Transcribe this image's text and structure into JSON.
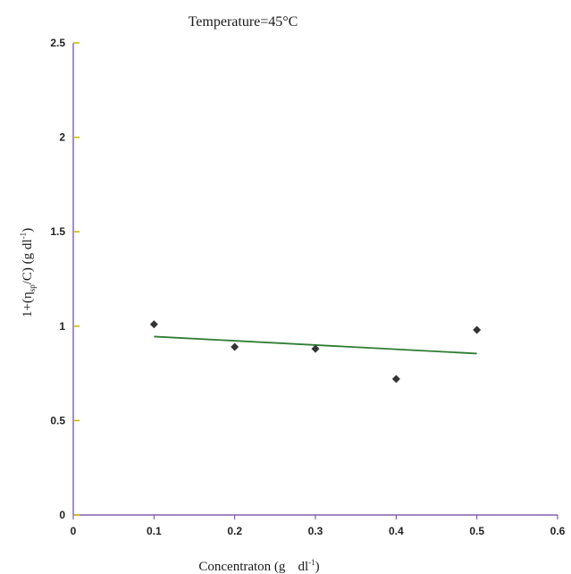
{
  "chart_data": {
    "type": "scatter",
    "title": "Temperature=45°C",
    "xlabel": {
      "main": "Concentraton (g",
      "unit_base": "dl",
      "unit_exp": "-1",
      "close": ")"
    },
    "ylabel": {
      "prefix": "1+(η",
      "sub": "sp",
      "middle": "/C) (g dl",
      "exp": "-1",
      "close": ")"
    },
    "xlim": [
      0,
      0.6
    ],
    "ylim": [
      0,
      2.5
    ],
    "x_ticks": [
      0,
      0.1,
      0.2,
      0.3,
      0.4,
      0.5,
      0.6
    ],
    "x_tick_labels": [
      "0",
      "0.1",
      "0.2",
      "0.3",
      "0.4",
      "0.5",
      "0.6"
    ],
    "y_ticks": [
      0,
      0.5,
      1,
      1.5,
      2,
      2.5
    ],
    "y_tick_labels": [
      "0",
      "0.5",
      "1",
      "1.5",
      "2",
      "2.5"
    ],
    "grid": false,
    "series": [
      {
        "points": [
          {
            "x": 0.1,
            "y": 1.01
          },
          {
            "x": 0.2,
            "y": 0.89
          },
          {
            "x": 0.3,
            "y": 0.88
          },
          {
            "x": 0.4,
            "y": 0.72
          },
          {
            "x": 0.5,
            "y": 0.98
          }
        ],
        "marker_color": "#333333"
      }
    ],
    "trendline": {
      "x": [
        0.1,
        0.5
      ],
      "y": [
        0.945,
        0.855
      ],
      "color": "#2e7d32"
    },
    "axis_color": "#6b3fa0",
    "tick_color": "#c8b400"
  }
}
